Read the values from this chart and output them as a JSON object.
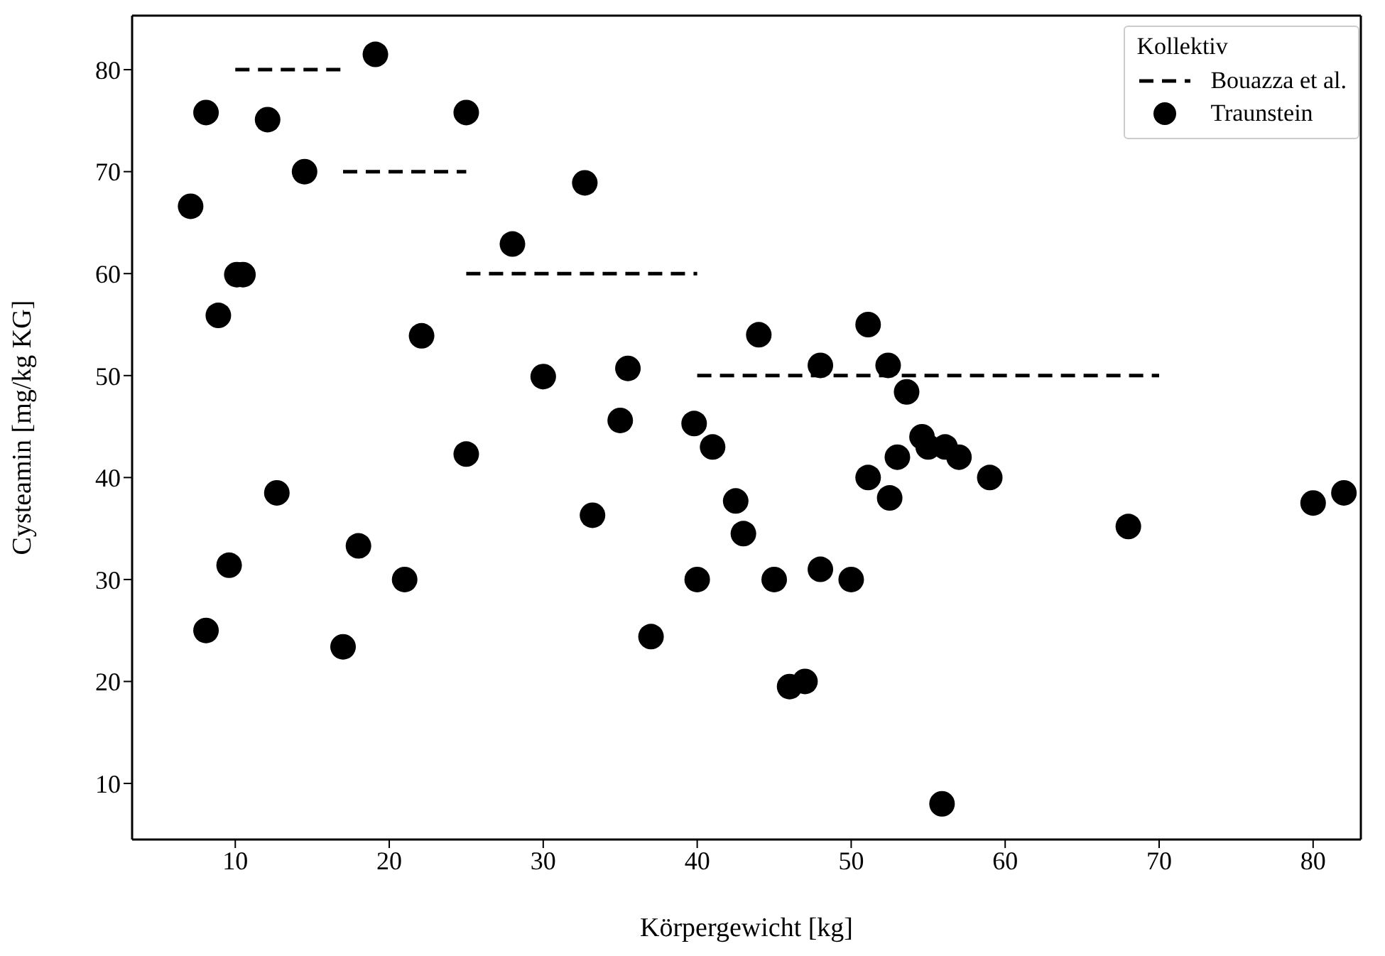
{
  "chart_data": {
    "type": "scatter",
    "xlabel": "Körpergewicht [kg]",
    "ylabel": "Cysteamin [mg/kg KG]",
    "legend_title": "Kollektiv",
    "legend": "top right",
    "grid": false,
    "xlim": [
      3.3,
      83.1
    ],
    "xticks": [
      10,
      20,
      30,
      40,
      50,
      60,
      70,
      80
    ],
    "ylim": [
      4.5,
      85.3
    ],
    "yticks": [
      10,
      20,
      30,
      40,
      50,
      60,
      70,
      80
    ],
    "series": [
      {
        "name": "Bouazza et al.",
        "type": "line",
        "line_style": "dashed",
        "marker": "none",
        "color": "#000000",
        "x": [
          10,
          17,
          null,
          17,
          25,
          null,
          25,
          40,
          null,
          40,
          70
        ],
        "values": [
          80,
          80,
          null,
          70,
          70,
          null,
          60,
          60,
          null,
          50,
          50
        ]
      },
      {
        "name": "Traunstein",
        "type": "scatter",
        "marker": "circle",
        "color": "#000000",
        "x": [
          19.1,
          8.1,
          12.1,
          25,
          14.5,
          32.7,
          7.1,
          10.1,
          10.5,
          8.9,
          28,
          22.1,
          30,
          35.5,
          35,
          39.8,
          41,
          25,
          12.7,
          33.2,
          9.6,
          18,
          21,
          8.1,
          17,
          37,
          40,
          44,
          51.1,
          48,
          52.4,
          53.6,
          42.5,
          43,
          45,
          48,
          50,
          46,
          47,
          51.1,
          52.5,
          53,
          54.6,
          55,
          56.1,
          57,
          59,
          68,
          80,
          82,
          55.9
        ],
        "values": [
          81.5,
          75.8,
          75.1,
          75.8,
          70,
          68.9,
          66.6,
          59.9,
          59.9,
          55.9,
          62.9,
          53.9,
          49.9,
          50.7,
          45.6,
          45.3,
          43,
          42.3,
          38.5,
          36.3,
          31.4,
          33.3,
          30,
          25,
          23.4,
          24.4,
          30,
          54,
          55,
          51,
          51,
          48.4,
          37.7,
          34.5,
          30,
          31,
          30,
          19.5,
          20,
          40,
          38,
          42,
          44,
          43,
          43,
          42,
          40,
          35.2,
          37.5,
          38.5,
          8
        ]
      }
    ]
  }
}
